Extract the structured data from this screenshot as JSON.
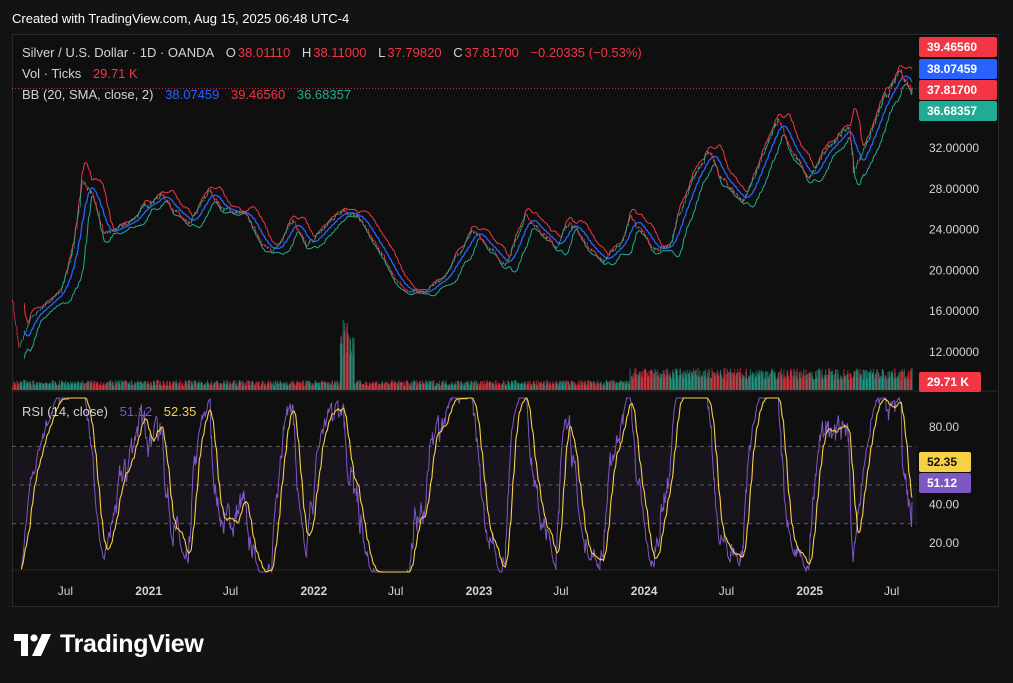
{
  "header": {
    "created": "Created with TradingView.com, Aug 15, 2025 06:48 UTC-4"
  },
  "legend": {
    "symbol": "Silver / U.S. Dollar · 1D · OANDA",
    "o_label": "O",
    "o_value": "38.01110",
    "h_label": "H",
    "h_value": "38.11000",
    "l_label": "L",
    "l_value": "37.79820",
    "c_label": "C",
    "c_value": "37.81700",
    "change": "−0.20335 (−0.53%)",
    "vol_label": "Vol · Ticks",
    "vol_value": "29.71 K",
    "bb_label": "BB (20, SMA, close, 2)",
    "bb_basis": "38.07459",
    "bb_upper": "39.46560",
    "bb_lower": "36.68357",
    "rsi_label": "RSI (14, close)",
    "rsi_value": "51.12",
    "rsi_ma": "52.35"
  },
  "footer": {
    "brand": "TradingView"
  },
  "colors": {
    "up": "#22ab94",
    "down": "#f23645",
    "bb_basis": "#2962ff",
    "bb_upper": "#f23645",
    "bb_lower": "#22ab94",
    "rsi": "#7e57c2",
    "rsi_ma": "#f7d046",
    "badge_close": "#f23645"
  },
  "chart_data": [
    {
      "type": "line",
      "title": "Silver / U.S. Dollar · 1D · OANDA",
      "ylim": [
        9.5,
        41
      ],
      "y_ticks": [
        "12.00000",
        "16.00000",
        "20.00000",
        "24.00000",
        "28.00000",
        "32.00000"
      ],
      "x_ticks": [
        "Jul",
        "2021",
        "Jul",
        "2022",
        "Jul",
        "2023",
        "Jul",
        "2024",
        "Jul",
        "2025",
        "Jul"
      ],
      "x_tick_dates": [
        "2020-07-01",
        "2021-01-01",
        "2021-07-01",
        "2022-01-01",
        "2022-07-01",
        "2023-01-01",
        "2023-07-01",
        "2024-01-01",
        "2024-07-01",
        "2025-01-01",
        "2025-07-01"
      ],
      "x_range": [
        "2020-03-05",
        "2025-08-15"
      ],
      "price_path": {
        "dates": [
          "2020-03-05",
          "2020-03-20",
          "2020-04-15",
          "2020-05-20",
          "2020-06-20",
          "2020-07-20",
          "2020-08-07",
          "2020-09-01",
          "2020-09-25",
          "2020-11-15",
          "2021-01-05",
          "2021-02-01",
          "2021-03-30",
          "2021-05-15",
          "2021-06-15",
          "2021-07-30",
          "2021-09-29",
          "2021-11-15",
          "2021-12-15",
          "2022-03-07",
          "2022-04-15",
          "2022-07-15",
          "2022-09-01",
          "2022-10-15",
          "2022-12-15",
          "2023-02-28",
          "2023-04-15",
          "2023-05-15",
          "2023-06-20",
          "2023-07-20",
          "2023-08-20",
          "2023-10-03",
          "2023-11-15",
          "2023-12-01",
          "2024-01-22",
          "2024-02-28",
          "2024-03-15",
          "2024-05-20",
          "2024-06-15",
          "2024-08-07",
          "2024-10-22",
          "2024-12-30",
          "2025-02-15",
          "2025-03-30",
          "2025-04-07",
          "2025-06-10",
          "2025-07-20",
          "2025-08-15"
        ],
        "close": [
          17.2,
          12.4,
          15.2,
          16.8,
          17.8,
          22.5,
          28.9,
          27.2,
          23.4,
          24.5,
          26.8,
          27.5,
          24.2,
          27.8,
          26.0,
          25.5,
          21.6,
          25.0,
          22.2,
          26.2,
          24.8,
          18.2,
          17.8,
          19.3,
          23.8,
          20.6,
          25.6,
          23.8,
          22.3,
          24.9,
          22.9,
          20.9,
          23.0,
          25.3,
          22.0,
          22.6,
          25.1,
          32.0,
          29.2,
          26.8,
          34.5,
          28.8,
          32.5,
          34.1,
          29.6,
          36.2,
          39.4,
          37.817
        ]
      },
      "bollinger": {
        "basis_last": 38.07459,
        "upper_last": 39.4656,
        "lower_last": 36.68357
      },
      "close_last": 37.817,
      "volume_last": "29.71 K",
      "price_badges": [
        {
          "label": "39.46560",
          "color": "#f23645",
          "text": "#ffffff"
        },
        {
          "label": "38.07459",
          "color": "#2962ff",
          "text": "#ffffff"
        },
        {
          "label": "37.81700",
          "color": "#f23645",
          "text": "#ffffff"
        },
        {
          "label": "36.68357",
          "color": "#22ab94",
          "text": "#ffffff"
        },
        {
          "label": "29.71 K",
          "color": "#f23645",
          "text": "#ffffff"
        }
      ]
    },
    {
      "type": "line",
      "title": "RSI (14, close)",
      "ylim": [
        5,
        95
      ],
      "y_ticks": [
        "20.00",
        "40.00",
        "80.00"
      ],
      "bands": [
        30,
        50,
        70
      ],
      "rsi_last": 51.12,
      "rsi_ma_last": 52.35,
      "rsi_badges": [
        {
          "label": "52.35",
          "color": "#f7d046",
          "text": "#131313"
        },
        {
          "label": "51.12",
          "color": "#7e57c2",
          "text": "#ffffff"
        }
      ]
    }
  ]
}
